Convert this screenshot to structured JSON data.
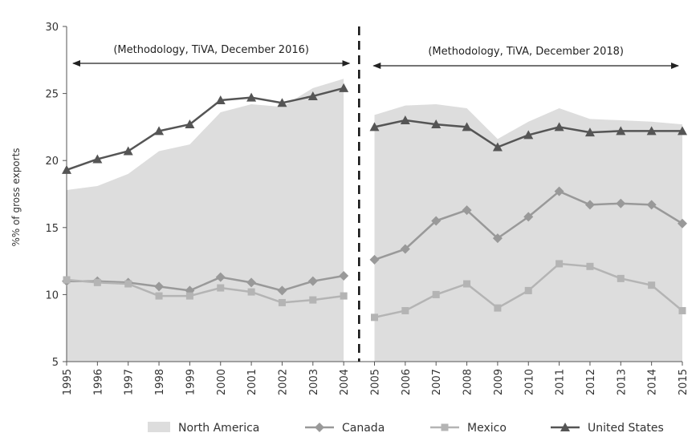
{
  "chart_data": {
    "type": "line",
    "title": "",
    "xlabel": "",
    "ylabel": "%% of gross exports",
    "ylim": [
      5,
      30
    ],
    "yticks": [
      "5",
      "10",
      "15",
      "20",
      "25",
      "30"
    ],
    "categories": [
      "1995",
      "1996",
      "1997",
      "1998",
      "1999",
      "2000",
      "2001",
      "2002",
      "2003",
      "2004",
      "2005",
      "2006",
      "2007",
      "2008",
      "2009",
      "2010",
      "2011",
      "2012",
      "2013",
      "2014",
      "2015"
    ],
    "area": {
      "name": "North America",
      "color": "#dddddd",
      "values": [
        17.8,
        18.1,
        19.0,
        20.7,
        21.2,
        23.6,
        24.2,
        24.0,
        25.4,
        26.1,
        23.4,
        24.1,
        24.2,
        23.9,
        21.6,
        22.9,
        23.9,
        23.1,
        23.0,
        22.9,
        22.7
      ]
    },
    "series": [
      {
        "name": "Canada",
        "color": "#999999",
        "marker": "diamond",
        "values": [
          11.0,
          11.0,
          10.9,
          10.6,
          10.3,
          11.3,
          10.9,
          10.3,
          11.0,
          11.4,
          12.6,
          13.4,
          15.5,
          16.3,
          14.2,
          15.8,
          17.7,
          16.7,
          16.8,
          16.7,
          15.3
        ]
      },
      {
        "name": "Mexico",
        "color": "#b4b4b4",
        "marker": "square",
        "values": [
          11.1,
          10.9,
          10.8,
          9.9,
          9.9,
          10.5,
          10.2,
          9.4,
          9.6,
          9.9,
          8.3,
          8.8,
          10.0,
          10.8,
          9.0,
          10.3,
          12.3,
          12.1,
          11.2,
          10.7,
          8.8
        ]
      },
      {
        "name": "United States",
        "color": "#555555",
        "marker": "triangle",
        "values": [
          19.3,
          20.1,
          20.7,
          22.2,
          22.7,
          24.5,
          24.7,
          24.3,
          24.8,
          25.4,
          22.5,
          23.0,
          22.7,
          22.5,
          21.0,
          21.9,
          22.5,
          22.1,
          22.2,
          22.2,
          22.2
        ]
      }
    ],
    "break_after": "2004",
    "annotations": {
      "left": "(Methodology, TiVA, December 2016)",
      "right": "(Methodology, TiVA, December 2018)"
    },
    "legend": {
      "position": "bottom",
      "items": [
        "North America",
        "Canada",
        "Mexico",
        "United States"
      ]
    }
  }
}
